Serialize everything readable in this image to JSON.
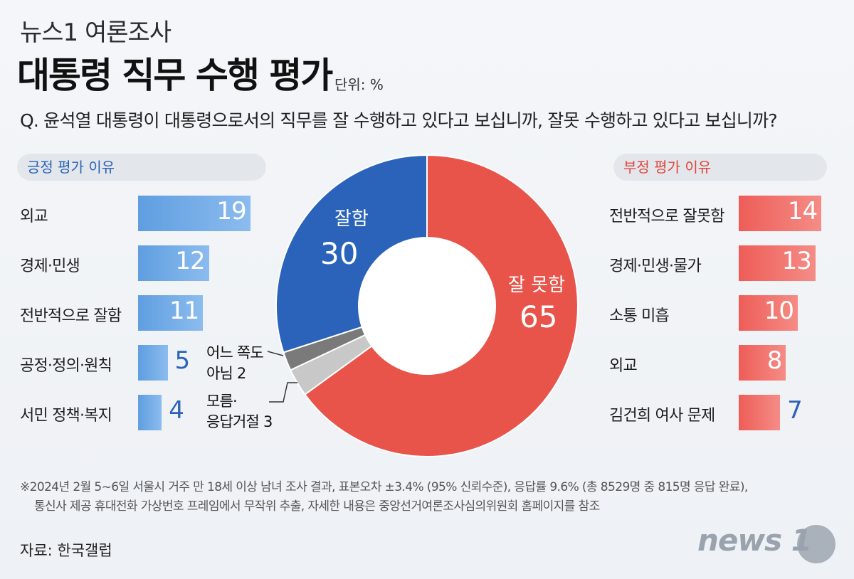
{
  "header": {
    "supertitle": "뉴스1 여론조사",
    "title": "대통령 직무 수행 평가",
    "unit": "단위: %",
    "question": "Q. 윤석열 대통령이 대통령으로서의 직무를 잘 수행하고 있다고 보십니까, 잘못 수행하고 있다고 보십니까?"
  },
  "positive_header": "긍정 평가 이유",
  "negative_header": "부정 평가 이유",
  "chart_data": [
    {
      "type": "bar",
      "title": "긍정 평가 이유",
      "categories": [
        "외교",
        "경제·민생",
        "전반적으로 잘함",
        "공정·정의·원칙",
        "서민 정책·복지"
      ],
      "values": [
        19,
        12,
        11,
        5,
        4
      ],
      "color": "#6aa6e6"
    },
    {
      "type": "pie",
      "title": "대통령 직무 수행 평가",
      "slices": [
        {
          "label": "잘함",
          "value": 30,
          "color": "#2a63b9"
        },
        {
          "label": "잘 못함",
          "value": 65,
          "color": "#e8534a"
        },
        {
          "label": "어느 쪽도 아님",
          "value": 2,
          "color": "#7a7a7a"
        },
        {
          "label": "모름·응답거절",
          "value": 3,
          "color": "#c8c8c8"
        }
      ]
    },
    {
      "type": "bar",
      "title": "부정 평가 이유",
      "categories": [
        "전반적으로 잘못함",
        "경제·민생·물가",
        "소통 미흡",
        "외교",
        "김건희 여사 문제"
      ],
      "values": [
        14,
        13,
        10,
        8,
        7
      ],
      "color": "#f07670"
    }
  ],
  "donut_labels": {
    "good_label": "잘함",
    "good_value": "30",
    "bad_label": "잘 못함",
    "bad_value": "65",
    "neither_line1": "어느 쪽도",
    "neither_line2": "아님 2",
    "dk_line1": "모름·",
    "dk_line2": "응답거절 3"
  },
  "footnote_line1": "※2024년 2월 5~6일 서울시 거주 만 18세 이상 남녀 조사 결과, 표본오차 ±3.4% (95% 신뢰수준), 응답률 9.6% (총  8529명 중 815명 응답 완료),",
  "footnote_line2": "통신사 제공 휴대전화 가상번호 프레임에서 무작위 추출, 자세한 내용은 중앙선거여론조사심의위원회 홈페이지를 참조",
  "source": "자료: 한국갤럽",
  "logo": "news 1"
}
